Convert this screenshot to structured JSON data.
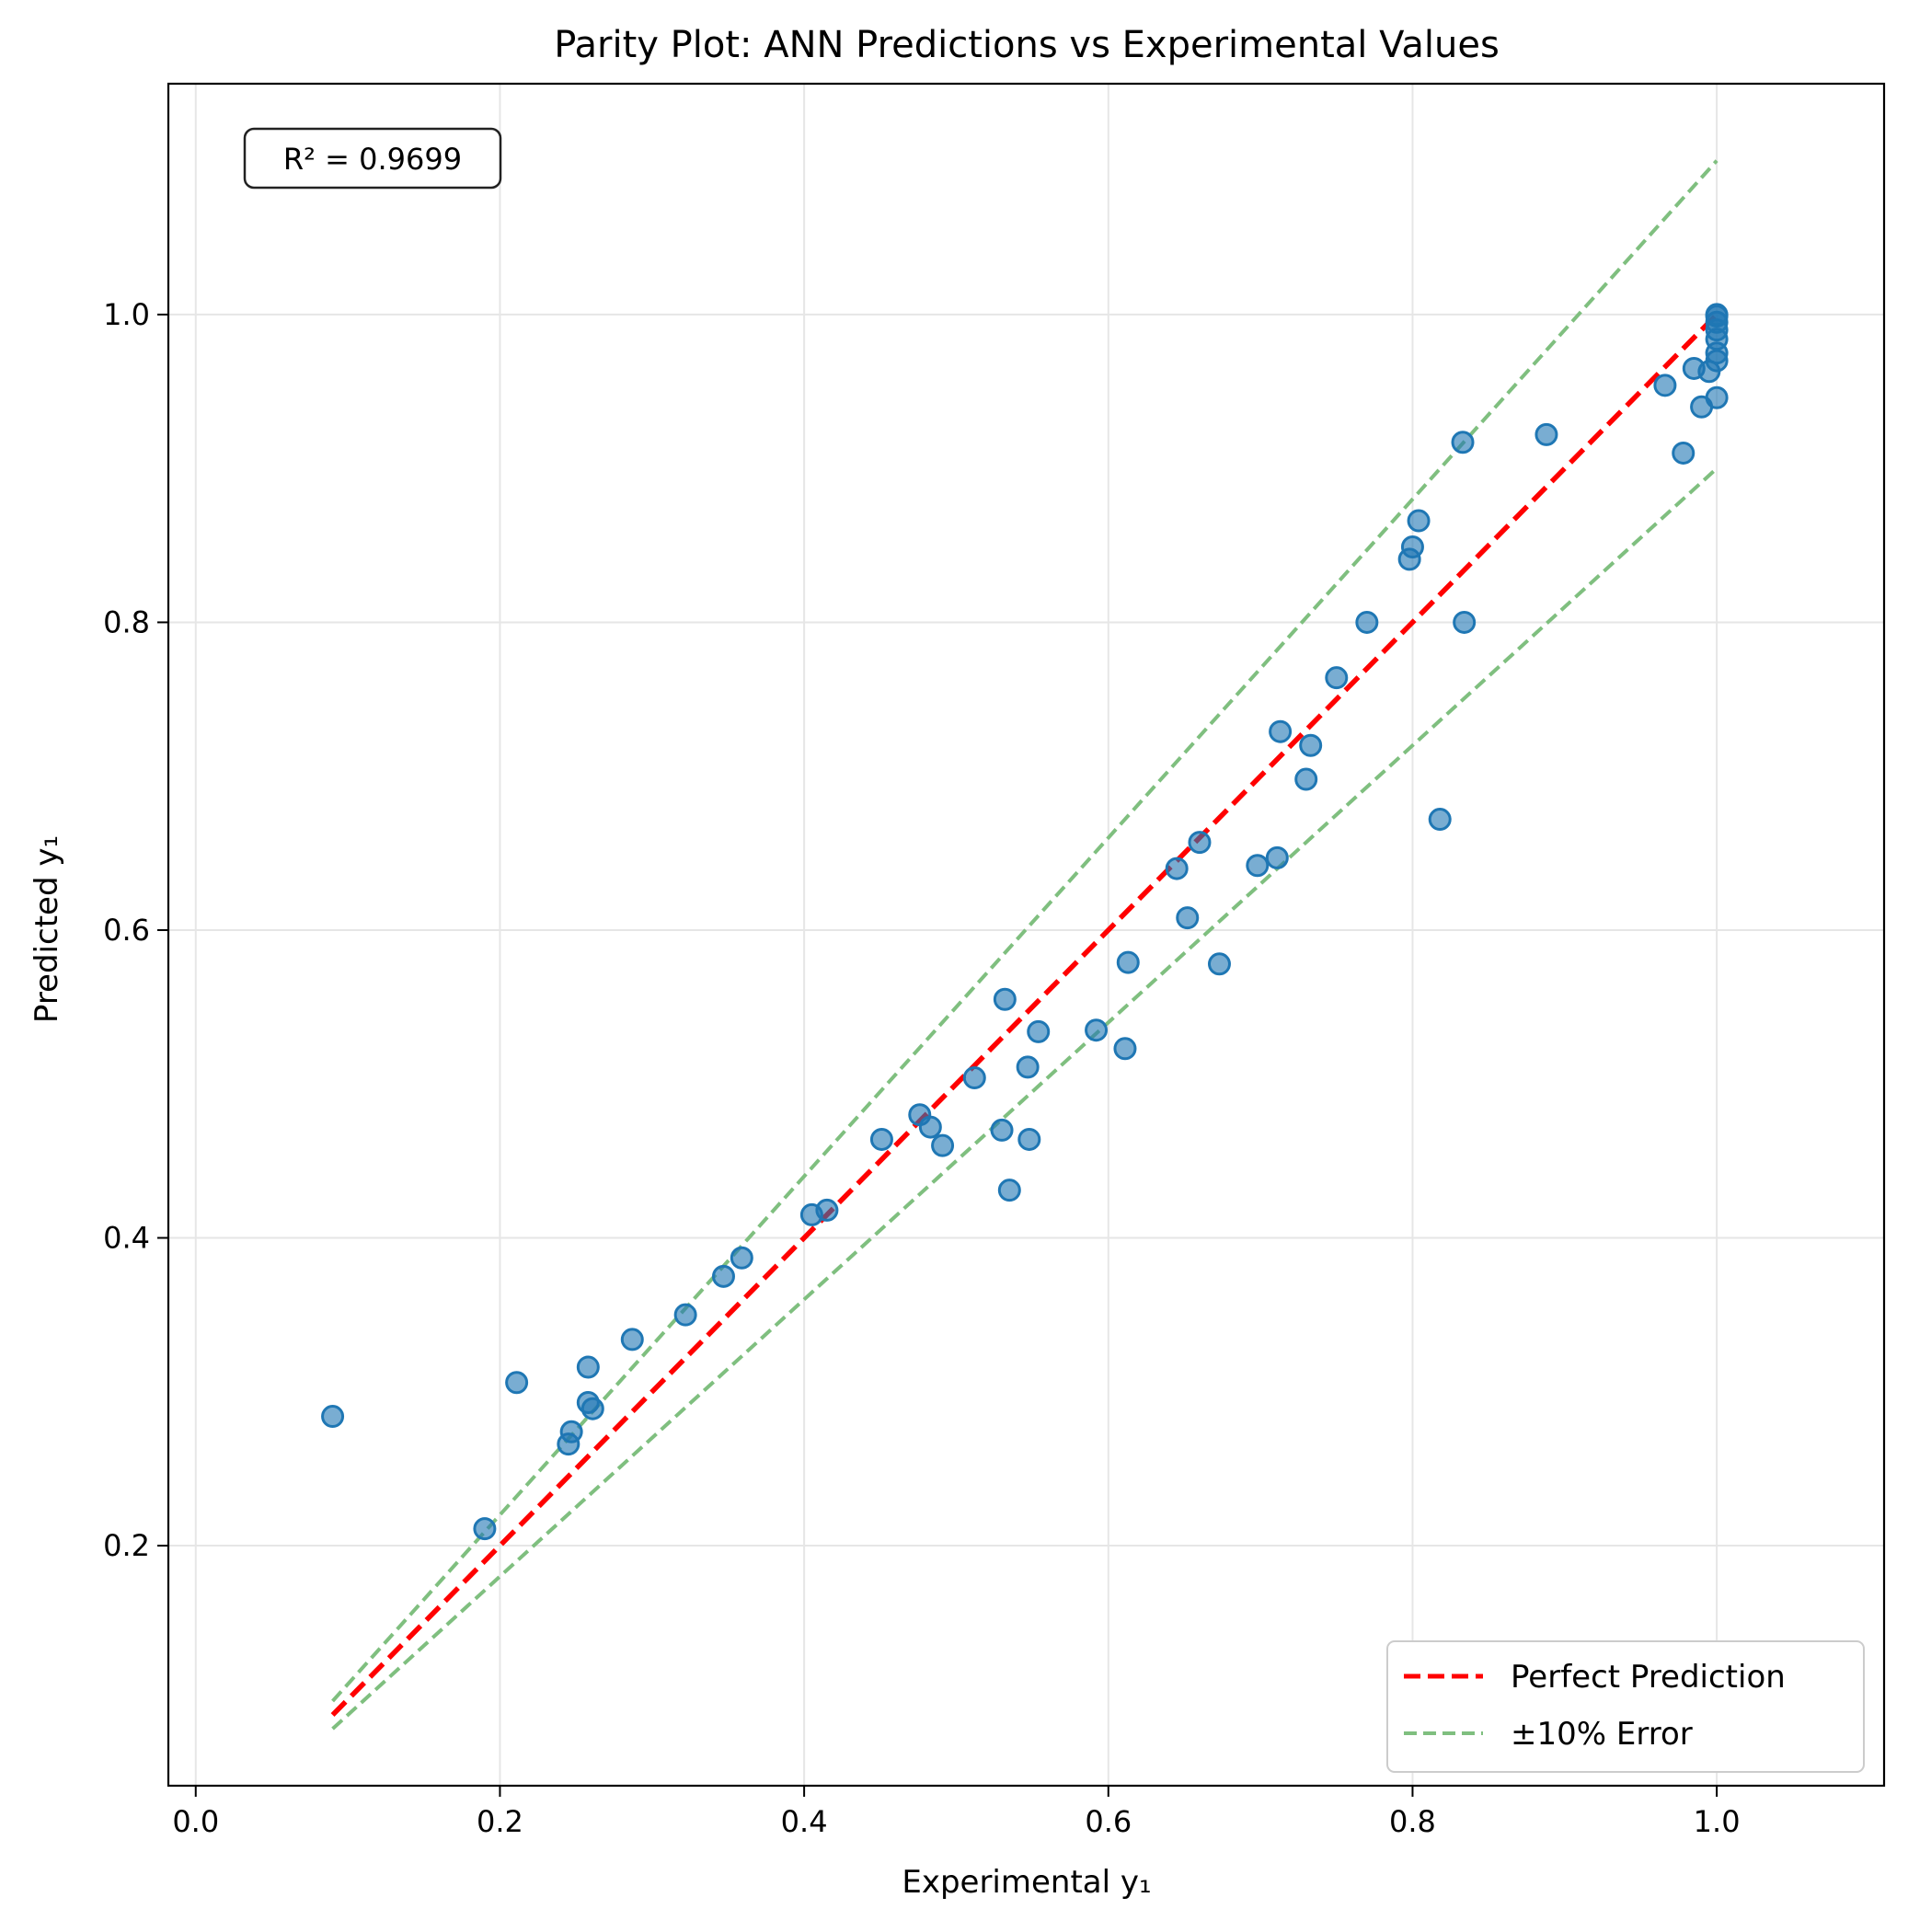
{
  "chart_data": {
    "type": "scatter",
    "title": "Parity Plot: ANN Predictions vs Experimental Values",
    "xlabel": "Experimental y₁",
    "ylabel": "Predicted y₁",
    "xlim": [
      -0.018,
      1.11
    ],
    "ylim": [
      0.044,
      1.15
    ],
    "xticks": [
      0.0,
      0.2,
      0.4,
      0.6,
      0.8,
      1.0
    ],
    "xtick_labels": [
      "0.0",
      "0.2",
      "0.4",
      "0.6",
      "0.8",
      "1.0"
    ],
    "yticks": [
      0.2,
      0.4,
      0.6,
      0.8,
      1.0
    ],
    "ytick_labels": [
      "0.2",
      "0.4",
      "0.6",
      "0.8",
      "1.0"
    ],
    "grid": true,
    "annotation": "R² = 0.9699",
    "legend": {
      "placement": "lower-right",
      "entries": [
        "Perfect Prediction",
        "±10% Error"
      ]
    },
    "lines": [
      {
        "name": "Perfect Prediction",
        "color": "#ff0000",
        "style": "dashed",
        "x": [
          0.09,
          1.0
        ],
        "y": [
          0.09,
          1.0
        ]
      },
      {
        "name": "±10% Error",
        "color": "#7fbf7f",
        "style": "dashed",
        "x": [
          0.09,
          1.0
        ],
        "y": [
          0.099,
          1.1
        ]
      },
      {
        "name": "",
        "color": "#7fbf7f",
        "style": "dashed",
        "x": [
          0.09,
          1.0
        ],
        "y": [
          0.081,
          0.9
        ]
      }
    ],
    "series": [
      {
        "name": "",
        "color": "#1f77b4",
        "x": [
          0.09,
          0.19,
          0.211,
          0.245,
          0.247,
          0.258,
          0.258,
          0.261,
          0.287,
          0.322,
          0.347,
          0.359,
          0.405,
          0.415,
          0.451,
          0.476,
          0.483,
          0.491,
          0.512,
          0.53,
          0.532,
          0.535,
          0.547,
          0.548,
          0.554,
          0.592,
          0.611,
          0.613,
          0.645,
          0.652,
          0.66,
          0.673,
          0.698,
          0.711,
          0.713,
          0.73,
          0.733,
          0.75,
          0.77,
          0.798,
          0.8,
          0.804,
          0.818,
          0.833,
          0.834,
          0.888,
          0.966,
          0.978,
          0.985,
          0.99,
          0.995,
          1.0,
          1.0,
          1.0,
          1.0,
          1.0,
          1.0,
          1.0,
          1.0
        ],
        "y": [
          0.284,
          0.211,
          0.306,
          0.266,
          0.274,
          0.293,
          0.316,
          0.289,
          0.334,
          0.35,
          0.375,
          0.387,
          0.415,
          0.418,
          0.464,
          0.48,
          0.472,
          0.46,
          0.504,
          0.47,
          0.555,
          0.431,
          0.511,
          0.464,
          0.534,
          0.535,
          0.523,
          0.579,
          0.64,
          0.608,
          0.657,
          0.578,
          0.642,
          0.647,
          0.729,
          0.698,
          0.72,
          0.764,
          0.8,
          0.841,
          0.849,
          0.866,
          0.672,
          0.917,
          0.8,
          0.922,
          0.954,
          0.91,
          0.965,
          0.94,
          0.963,
          0.946,
          0.97,
          0.975,
          0.984,
          0.99,
          0.995,
          0.999,
          1.0
        ]
      }
    ]
  },
  "colors": {
    "points": "#1f77b4",
    "perfect_line": "#ff0000",
    "error_lines": "#7fbf7f",
    "grid": "#e6e6e6"
  }
}
